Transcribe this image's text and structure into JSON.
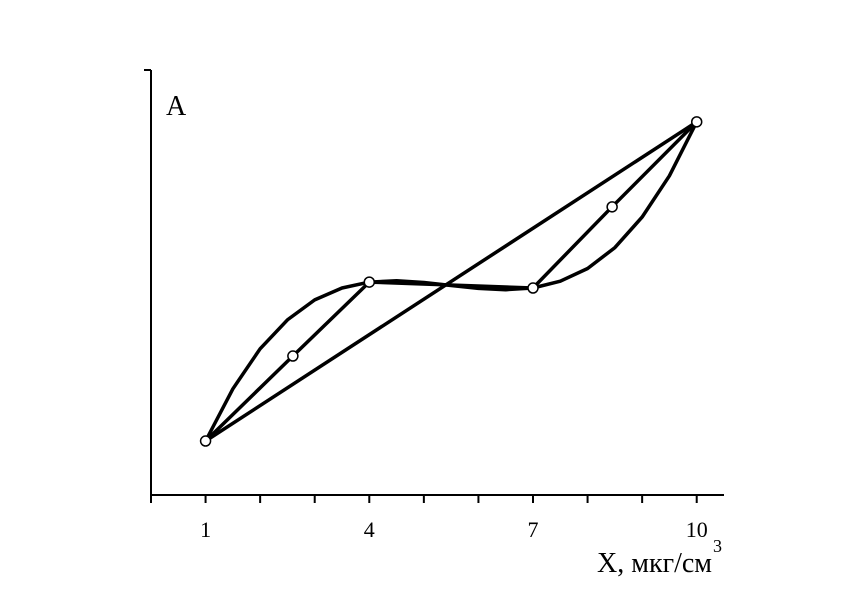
{
  "chart_data": {
    "type": "line",
    "ylabel": "A",
    "xlabel": "X, мкг/см",
    "xlabel_superscript": "3",
    "xlim": [
      0,
      10.5
    ],
    "xticks": [
      1,
      4,
      7,
      10
    ],
    "xminorticks": [
      0,
      2,
      3,
      5,
      6,
      8,
      9
    ],
    "ylim": [
      0,
      10
    ],
    "series": [
      {
        "color": "#000000",
        "marker": false,
        "x": [
          1,
          10
        ],
        "values": [
          1.27,
          8.78
        ]
      },
      {
        "color": "#000000",
        "marker": true,
        "x": [
          1,
          2.6,
          4,
          7,
          8.45,
          10
        ],
        "values": [
          1.27,
          3.27,
          5.01,
          4.87,
          6.78,
          8.78
        ]
      },
      {
        "color": "#000000",
        "marker": false,
        "x": [
          1,
          1.5,
          2,
          2.5,
          3,
          3.5,
          4,
          4.5,
          5,
          5.5,
          6,
          6.5,
          7,
          7.5,
          8,
          8.5,
          9,
          9.5,
          10
        ],
        "values": [
          1.27,
          2.5,
          3.44,
          4.12,
          4.59,
          4.87,
          5.01,
          5.04,
          5.0,
          4.93,
          4.86,
          4.83,
          4.87,
          5.03,
          5.33,
          5.82,
          6.54,
          7.51,
          8.78
        ]
      }
    ]
  }
}
